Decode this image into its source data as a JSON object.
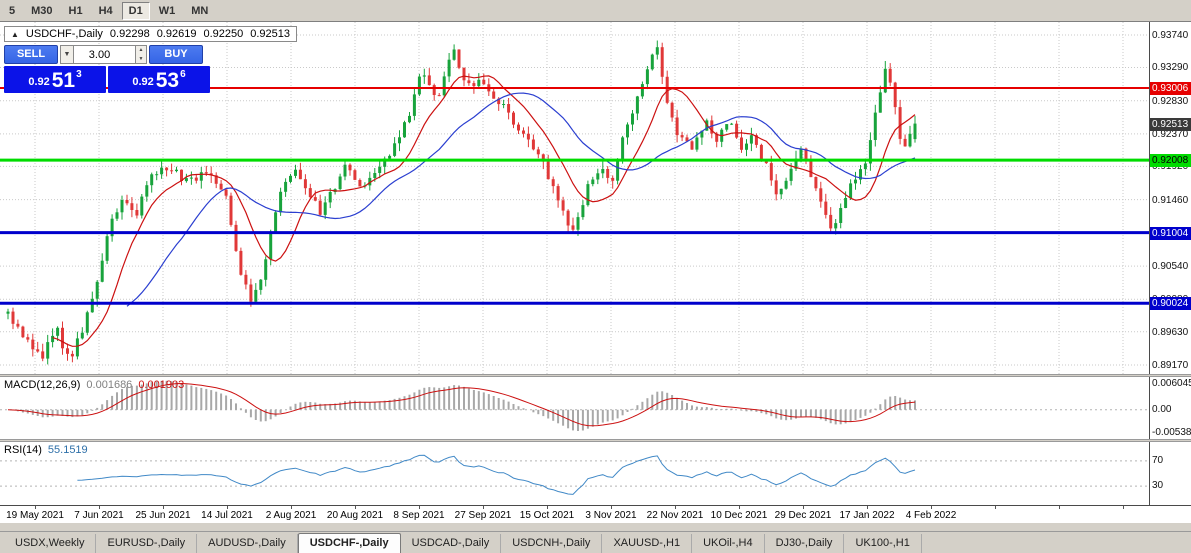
{
  "toolbar": {
    "timeframes": [
      {
        "label": "5",
        "active": false
      },
      {
        "label": "M30",
        "active": false
      },
      {
        "label": "H1",
        "active": false
      },
      {
        "label": "H4",
        "active": false
      },
      {
        "label": "D1",
        "active": true
      },
      {
        "label": "W1",
        "active": false
      },
      {
        "label": "MN",
        "active": false
      }
    ]
  },
  "chart": {
    "header": {
      "collapse_icon": "▲",
      "symbol": "USDCHF-,Daily",
      "open": "0.92298",
      "high": "0.92619",
      "low": "0.92250",
      "close": "0.92513"
    },
    "trade_panel": {
      "sell_label": "SELL",
      "buy_label": "BUY",
      "volume": "3.00",
      "dropdown_icon": "▼",
      "spin_up_icon": "▲",
      "spin_down_icon": "▼",
      "sell_price": {
        "prefix": "0.92",
        "pips": "51",
        "pipette": "3"
      },
      "buy_price": {
        "prefix": "0.92",
        "pips": "53",
        "pipette": "6"
      }
    },
    "price_axis_labels": [
      "0.93740",
      "0.93290",
      "0.92830",
      "0.92370",
      "0.91920",
      "0.91460",
      "0.91000",
      "0.90540",
      "0.90080",
      "0.89630",
      "0.89170"
    ],
    "price_axis_values": [
      0.9374,
      0.9329,
      0.9283,
      0.9237,
      0.9192,
      0.9146,
      0.91,
      0.9054,
      0.9008,
      0.8963,
      0.8917
    ],
    "horizontal_lines": [
      {
        "price": 0.93006,
        "label": "0.93006",
        "color": "#e60000",
        "text_color": "#ffffff",
        "width": 2
      },
      {
        "price": 0.92008,
        "label": "0.92008",
        "color": "#00dc00",
        "text_color": "#000000",
        "width": 3
      },
      {
        "price": 0.91004,
        "label": "0.91004",
        "color": "#0000cc",
        "text_color": "#ffffff",
        "width": 3
      },
      {
        "price": 0.90024,
        "label": "0.90024",
        "color": "#0000cc",
        "text_color": "#ffffff",
        "width": 3
      }
    ],
    "current_price": {
      "label": "0.92513",
      "value": 0.92513,
      "bg": "#3a3a3a",
      "text_color": "#ffffff"
    }
  },
  "macd": {
    "label": "MACD(12,26,9)",
    "value_main": "0.001686",
    "value_signal": "0.001903",
    "axis_labels": [
      "0.006045",
      "0.00",
      "-0.005380"
    ],
    "range_max": 0.006045,
    "range_min": -0.00538
  },
  "rsi": {
    "label": "RSI(14)",
    "value": "55.1519",
    "levels": [
      70,
      30
    ],
    "axis_labels": [
      "70",
      "30"
    ]
  },
  "date_axis": {
    "labels": [
      "19 May 2021",
      "7 Jun 2021",
      "25 Jun 2021",
      "14 Jul 2021",
      "2 Aug 2021",
      "20 Aug 2021",
      "8 Sep 2021",
      "27 Sep 2021",
      "15 Oct 2021",
      "3 Nov 2021",
      "22 Nov 2021",
      "10 Dec 2021",
      "29 Dec 2021",
      "17 Jan 2022",
      "4 Feb 2022"
    ]
  },
  "tabs": [
    {
      "label": "USDX,Weekly",
      "active": false
    },
    {
      "label": "EURUSD-,Daily",
      "active": false
    },
    {
      "label": "AUDUSD-,Daily",
      "active": false
    },
    {
      "label": "USDCHF-,Daily",
      "active": true
    },
    {
      "label": "USDCAD-,Daily",
      "active": false
    },
    {
      "label": "USDCNH-,Daily",
      "active": false
    },
    {
      "label": "XAUUSD-,H1",
      "active": false
    },
    {
      "label": "UKOil-,H4",
      "active": false
    },
    {
      "label": "DJ30-,Daily",
      "active": false
    },
    {
      "label": "UK100-,H1",
      "active": false
    }
  ],
  "colors": {
    "bull": "#18a33c",
    "bear": "#e03838",
    "ma_fast": "#cc1111",
    "ma_slow": "#2b3fd0",
    "grid": "#c9c9c9",
    "macd_hist": "#a8a8a8",
    "macd_signal": "#cc1111",
    "rsi_line": "#4189c7",
    "level_line": "#b4b4b4",
    "button_blue": "#3565e6",
    "price_box_blue": "#0b13e8",
    "chrome": "#d4d0c8"
  },
  "chart_data": {
    "type": "candlestick",
    "symbol": "USDCHF",
    "period": "Daily",
    "visible_range": {
      "date_start": "19 May 2021",
      "date_end": "4 Feb 2022",
      "price_min": 0.89045,
      "price_max": 0.9392
    },
    "last_bar": {
      "open": 0.92298,
      "high": 0.92619,
      "low": 0.9225,
      "close": 0.92513
    },
    "bid": 0.92513,
    "ask": 0.92536,
    "candles_count": 184,
    "price_path": [
      [
        0.0,
        0.8988
      ],
      [
        0.015,
        0.896
      ],
      [
        0.04,
        0.893
      ],
      [
        0.052,
        0.8972
      ],
      [
        0.068,
        0.892
      ],
      [
        0.085,
        0.8975
      ],
      [
        0.1,
        0.904
      ],
      [
        0.112,
        0.9105
      ],
      [
        0.125,
        0.9145
      ],
      [
        0.14,
        0.912
      ],
      [
        0.155,
        0.9178
      ],
      [
        0.175,
        0.9192
      ],
      [
        0.2,
        0.917
      ],
      [
        0.22,
        0.9185
      ],
      [
        0.24,
        0.915
      ],
      [
        0.258,
        0.9035
      ],
      [
        0.27,
        0.9
      ],
      [
        0.283,
        0.906
      ],
      [
        0.3,
        0.915
      ],
      [
        0.315,
        0.919
      ],
      [
        0.33,
        0.9155
      ],
      [
        0.345,
        0.9128
      ],
      [
        0.36,
        0.9165
      ],
      [
        0.375,
        0.9195
      ],
      [
        0.39,
        0.916
      ],
      [
        0.405,
        0.918
      ],
      [
        0.42,
        0.9205
      ],
      [
        0.44,
        0.9255
      ],
      [
        0.455,
        0.9325
      ],
      [
        0.472,
        0.9282
      ],
      [
        0.492,
        0.9355
      ],
      [
        0.505,
        0.93
      ],
      [
        0.525,
        0.9308
      ],
      [
        0.545,
        0.9275
      ],
      [
        0.565,
        0.924
      ],
      [
        0.585,
        0.921
      ],
      [
        0.605,
        0.915
      ],
      [
        0.622,
        0.9098
      ],
      [
        0.64,
        0.9165
      ],
      [
        0.655,
        0.9192
      ],
      [
        0.665,
        0.916
      ],
      [
        0.68,
        0.924
      ],
      [
        0.695,
        0.9295
      ],
      [
        0.708,
        0.933
      ],
      [
        0.715,
        0.9368
      ],
      [
        0.725,
        0.929
      ],
      [
        0.74,
        0.9232
      ],
      [
        0.755,
        0.9215
      ],
      [
        0.77,
        0.9252
      ],
      [
        0.782,
        0.9228
      ],
      [
        0.795,
        0.9255
      ],
      [
        0.808,
        0.9218
      ],
      [
        0.82,
        0.923
      ],
      [
        0.835,
        0.9195
      ],
      [
        0.848,
        0.9148
      ],
      [
        0.862,
        0.918
      ],
      [
        0.875,
        0.9215
      ],
      [
        0.888,
        0.917
      ],
      [
        0.898,
        0.913
      ],
      [
        0.908,
        0.91
      ],
      [
        0.92,
        0.9145
      ],
      [
        0.932,
        0.917
      ],
      [
        0.944,
        0.919
      ],
      [
        0.956,
        0.926
      ],
      [
        0.966,
        0.933
      ],
      [
        0.976,
        0.929
      ],
      [
        0.986,
        0.9205
      ],
      [
        1.0,
        0.9251
      ]
    ],
    "indicators": {
      "macd": {
        "fast": 12,
        "slow": 26,
        "signal": 9,
        "current_main": 0.001686,
        "current_signal": 0.001903
      },
      "rsi": {
        "period": 14,
        "current": 55.1519,
        "levels": [
          70,
          30
        ]
      },
      "moving_averages": [
        {
          "period": 10,
          "color": "#cc1111"
        },
        {
          "period": 25,
          "color": "#2b3fd0"
        }
      ]
    }
  }
}
